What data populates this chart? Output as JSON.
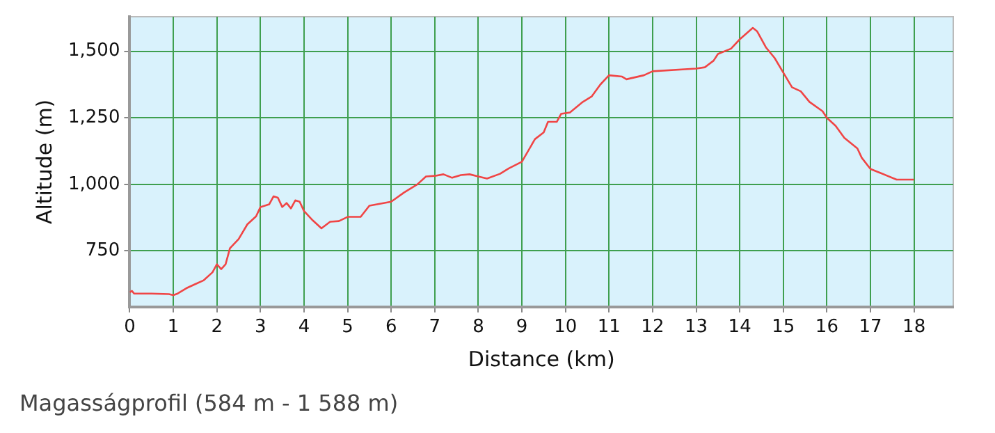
{
  "chart_data": {
    "type": "line",
    "xlabel": "Distance (km)",
    "ylabel": "Altitude (m)",
    "annotations": [
      "Magasságprofil (584 m - 1 588 m)"
    ],
    "x": [
      0,
      0.05,
      0.1,
      0.5,
      0.9,
      1.0,
      1.1,
      1.3,
      1.5,
      1.7,
      1.9,
      2.0,
      2.1,
      2.2,
      2.3,
      2.5,
      2.7,
      2.9,
      3.0,
      3.2,
      3.3,
      3.4,
      3.5,
      3.6,
      3.7,
      3.8,
      3.9,
      4.0,
      4.2,
      4.4,
      4.6,
      4.8,
      5.0,
      5.3,
      5.5,
      6.0,
      6.3,
      6.6,
      6.8,
      7.0,
      7.2,
      7.4,
      7.6,
      7.8,
      8.0,
      8.2,
      8.5,
      8.7,
      9.0,
      9.3,
      9.5,
      9.6,
      9.8,
      9.9,
      10.1,
      10.4,
      10.6,
      10.8,
      11.0,
      11.3,
      11.4,
      11.8,
      12.0,
      13.0,
      13.2,
      13.4,
      13.5,
      13.8,
      14.0,
      14.3,
      14.4,
      14.6,
      14.8,
      15.0,
      15.2,
      15.4,
      15.6,
      15.9,
      16.0,
      16.2,
      16.4,
      16.7,
      16.8,
      17.0,
      17.2,
      17.6,
      18.0
    ],
    "series": [
      {
        "color": "#f04545",
        "values": [
          595,
          600,
          590,
          590,
          588,
          584,
          590,
          610,
          625,
          640,
          670,
          700,
          682,
          700,
          760,
          795,
          850,
          880,
          915,
          925,
          955,
          950,
          915,
          930,
          910,
          940,
          935,
          900,
          865,
          835,
          860,
          862,
          878,
          878,
          920,
          935,
          970,
          1000,
          1030,
          1032,
          1038,
          1025,
          1035,
          1038,
          1030,
          1022,
          1040,
          1060,
          1085,
          1170,
          1195,
          1235,
          1235,
          1265,
          1270,
          1310,
          1330,
          1375,
          1410,
          1405,
          1395,
          1410,
          1425,
          1435,
          1440,
          1465,
          1490,
          1510,
          1545,
          1588,
          1575,
          1515,
          1475,
          1420,
          1365,
          1350,
          1310,
          1275,
          1250,
          1220,
          1175,
          1135,
          1100,
          1058,
          1045,
          1018,
          1018
        ]
      }
    ],
    "xlim": [
      0,
      18.9
    ],
    "xticks": [
      0,
      1,
      2,
      3,
      4,
      5,
      6,
      7,
      8,
      9,
      10,
      11,
      12,
      13,
      14,
      15,
      16,
      17,
      18
    ],
    "ylim": [
      540,
      1630
    ],
    "yticks": [
      {
        "value": 750,
        "label": "750"
      },
      {
        "value": 1000,
        "label": "1,000"
      },
      {
        "value": 1250,
        "label": "1,250"
      },
      {
        "value": 1500,
        "label": "1,500"
      }
    ],
    "grid": true,
    "legend": false,
    "marker": "none",
    "line_style": "solid"
  }
}
